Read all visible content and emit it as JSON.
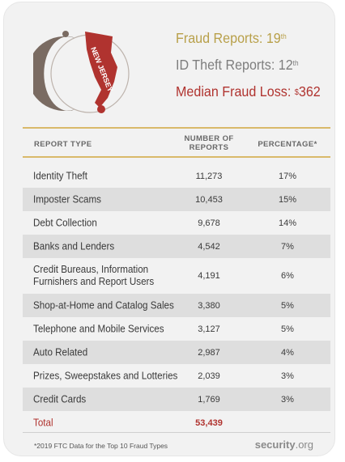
{
  "logo": {
    "state_label": "NEW JERSEY"
  },
  "stats": {
    "fraud_label": "Fraud Reports: 19",
    "fraud_suffix": "th",
    "idtheft_label": "ID Theft Reports: 12",
    "idtheft_suffix": "th",
    "loss_label": "Median Fraud Loss: ",
    "loss_currency": "$",
    "loss_value": "362"
  },
  "table": {
    "headers": {
      "type": "REPORT TYPE",
      "number_line1": "NUMBER OF",
      "number_line2": "REPORTS",
      "percentage": "PERCENTAGE*"
    },
    "rows": [
      {
        "type": "Identity Theft",
        "number": "11,273",
        "percentage": "17%"
      },
      {
        "type": "Imposter Scams",
        "number": "10,453",
        "percentage": "15%"
      },
      {
        "type": "Debt Collection",
        "number": "9,678",
        "percentage": "14%"
      },
      {
        "type": "Banks and Lenders",
        "number": "4,542",
        "percentage": "7%"
      },
      {
        "type_line1": "Credit Bureaus, Information",
        "type_line2": "Furnishers and Report Users",
        "number": "4,191",
        "percentage": "6%"
      },
      {
        "type": "Shop-at-Home and Catalog Sales",
        "number": "3,380",
        "percentage": "5%"
      },
      {
        "type": "Telephone and Mobile Services",
        "number": "3,127",
        "percentage": "5%"
      },
      {
        "type": "Auto Related",
        "number": "2,987",
        "percentage": "4%"
      },
      {
        "type": "Prizes, Sweepstakes and Lotteries",
        "number": "2,039",
        "percentage": "3%"
      },
      {
        "type": "Credit Cards",
        "number": "1,769",
        "percentage": "3%"
      }
    ],
    "total": {
      "label": "Total",
      "number": "53,439"
    }
  },
  "footer": {
    "note": "*2019 FTC Data for the Top 10 Fraud Types",
    "brand_main": "security",
    "brand_tld": ".org"
  },
  "colors": {
    "gold": "#d9b96a",
    "red": "#b0332f",
    "gray": "#7e7e7e",
    "card": "#f2f2f2",
    "stripe": "#dedede"
  }
}
